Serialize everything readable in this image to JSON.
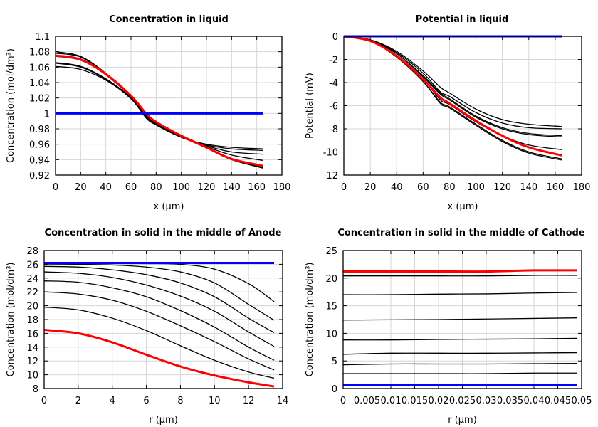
{
  "chart_data": [
    {
      "type": "line",
      "title": "Concentration in liquid",
      "xlabel": "x (µm)",
      "ylabel": "Concentration (mol/dm³)",
      "xlim": [
        0,
        180
      ],
      "ylim": [
        0.92,
        1.1
      ],
      "xticks": [
        "0",
        "20",
        "40",
        "60",
        "80",
        "100",
        "120",
        "140",
        "160",
        "180"
      ],
      "yticks": [
        "0.92",
        "0.94",
        "0.96",
        "0.98",
        "1",
        "1.02",
        "1.04",
        "1.06",
        "1.08",
        "1.1"
      ],
      "grid": true,
      "x": [
        0,
        20,
        40,
        60,
        72,
        80,
        100,
        120,
        140,
        165
      ],
      "series": [
        {
          "color": "#000000",
          "values": [
            1.08,
            1.074,
            1.052,
            1.022,
            0.998,
            0.988,
            0.97,
            0.955,
            0.94,
            0.929
          ]
        },
        {
          "color": "#000000",
          "values": [
            1.078,
            1.073,
            1.051,
            1.022,
            0.997,
            0.987,
            0.97,
            0.956,
            0.941,
            0.93
          ]
        },
        {
          "color": "#000000",
          "values": [
            1.074,
            1.069,
            1.05,
            1.021,
            0.996,
            0.986,
            0.97,
            0.957,
            0.946,
            0.939
          ]
        },
        {
          "color": "#000000",
          "values": [
            1.066,
            1.061,
            1.045,
            1.02,
            0.995,
            0.986,
            0.969,
            0.958,
            0.95,
            0.947
          ]
        },
        {
          "color": "#000000",
          "values": [
            1.065,
            1.06,
            1.044,
            1.02,
            0.995,
            0.985,
            0.969,
            0.959,
            0.954,
            0.952
          ]
        },
        {
          "color": "#000000",
          "values": [
            1.061,
            1.057,
            1.043,
            1.019,
            0.994,
            0.985,
            0.969,
            0.96,
            0.956,
            0.954
          ]
        },
        {
          "color": "#ff0000",
          "values": [
            1.075,
            1.07,
            1.051,
            1.023,
            1.0,
            0.989,
            0.971,
            0.956,
            0.941,
            0.932
          ]
        },
        {
          "color": "#0000ff",
          "values": [
            1.0,
            1.0,
            1.0,
            1.0,
            1.0,
            1.0,
            1.0,
            1.0,
            1.0,
            1.0
          ]
        }
      ]
    },
    {
      "type": "line",
      "title": "Potential in liquid",
      "xlabel": "x (µm)",
      "ylabel": "Potential (mV)",
      "xlim": [
        0,
        180
      ],
      "ylim": [
        -12,
        0
      ],
      "xticks": [
        "0",
        "20",
        "40",
        "60",
        "80",
        "100",
        "120",
        "140",
        "160",
        "180"
      ],
      "yticks": [
        "-12",
        "-10",
        "-8",
        "-6",
        "-4",
        "-2",
        "0"
      ],
      "grid": true,
      "x": [
        0,
        20,
        40,
        60,
        73,
        80,
        100,
        120,
        140,
        165
      ],
      "series": [
        {
          "color": "#000000",
          "values": [
            0,
            -0.3,
            -1.3,
            -3.0,
            -4.4,
            -4.9,
            -6.3,
            -7.2,
            -7.6,
            -7.8
          ]
        },
        {
          "color": "#000000",
          "values": [
            0,
            -0.3,
            -1.4,
            -3.2,
            -4.8,
            -5.2,
            -6.6,
            -7.5,
            -7.9,
            -8.0
          ]
        },
        {
          "color": "#000000",
          "values": [
            0,
            -0.35,
            -1.5,
            -3.4,
            -4.9,
            -5.4,
            -6.9,
            -7.9,
            -8.4,
            -8.6
          ]
        },
        {
          "color": "#000000",
          "values": [
            0,
            -0.35,
            -1.5,
            -3.5,
            -5.0,
            -5.5,
            -7.0,
            -8.0,
            -8.5,
            -8.7
          ]
        },
        {
          "color": "#000000",
          "values": [
            0,
            -0.4,
            -1.7,
            -3.7,
            -5.5,
            -5.9,
            -7.4,
            -8.6,
            -9.4,
            -9.8
          ]
        },
        {
          "color": "#000000",
          "values": [
            0,
            -0.4,
            -1.8,
            -3.9,
            -5.7,
            -6.1,
            -7.6,
            -9.0,
            -10.0,
            -10.6
          ]
        },
        {
          "color": "#000000",
          "values": [
            0,
            -0.4,
            -1.8,
            -3.9,
            -5.8,
            -6.2,
            -7.7,
            -9.1,
            -10.1,
            -10.7
          ]
        },
        {
          "color": "#ff0000",
          "values": [
            0,
            -0.4,
            -1.7,
            -3.7,
            -5.3,
            -5.8,
            -7.3,
            -8.6,
            -9.6,
            -10.3
          ]
        },
        {
          "color": "#0000ff",
          "values": [
            0,
            0,
            0,
            0,
            0,
            0,
            0,
            0,
            0,
            0
          ]
        }
      ]
    },
    {
      "type": "line",
      "title": "Concentration in solid in the middle of Anode",
      "xlabel": "r (µm)",
      "ylabel": "Concentration (mol/dm³)",
      "xlim": [
        0,
        14
      ],
      "ylim": [
        8,
        28
      ],
      "xticks": [
        "0",
        "2",
        "4",
        "6",
        "8",
        "10",
        "12",
        "14"
      ],
      "yticks": [
        "8",
        "10",
        "12",
        "14",
        "16",
        "18",
        "20",
        "22",
        "24",
        "26",
        "28"
      ],
      "grid": true,
      "x": [
        0,
        2,
        4,
        6,
        8,
        10,
        12,
        13.5
      ],
      "series": [
        {
          "color": "#000000",
          "values": [
            26.15,
            26.15,
            26.1,
            26.1,
            26.0,
            25.3,
            23.2,
            20.6
          ]
        },
        {
          "color": "#000000",
          "values": [
            26.05,
            26.0,
            25.9,
            25.6,
            24.9,
            23.3,
            20.2,
            17.9
          ]
        },
        {
          "color": "#000000",
          "values": [
            25.7,
            25.6,
            25.2,
            24.5,
            23.3,
            21.3,
            18.2,
            16.1
          ]
        },
        {
          "color": "#000000",
          "values": [
            24.9,
            24.7,
            24.1,
            23.0,
            21.4,
            19.2,
            16.2,
            14.1
          ]
        },
        {
          "color": "#000000",
          "values": [
            23.6,
            23.4,
            22.6,
            21.3,
            19.3,
            16.9,
            14.0,
            12.1
          ]
        },
        {
          "color": "#000000",
          "values": [
            22.0,
            21.7,
            20.8,
            19.2,
            17.1,
            14.8,
            12.3,
            10.7
          ]
        },
        {
          "color": "#000000",
          "values": [
            19.8,
            19.4,
            18.2,
            16.4,
            14.2,
            12.1,
            10.4,
            9.5
          ]
        },
        {
          "color": "#ff0000",
          "values": [
            16.5,
            16.0,
            14.7,
            12.9,
            11.2,
            9.9,
            8.9,
            8.3
          ]
        },
        {
          "color": "#0000ff",
          "values": [
            26.2,
            26.2,
            26.2,
            26.2,
            26.2,
            26.2,
            26.2,
            26.2
          ]
        }
      ]
    },
    {
      "type": "line",
      "title": "Concentration in solid in the middle of Cathode",
      "xlabel": "r (µm)",
      "ylabel": "Concentration (mol/dm³)",
      "xlim": [
        0,
        0.05
      ],
      "ylim": [
        0,
        25
      ],
      "xticks": [
        "0",
        "0.005",
        "0.01",
        "0.015",
        "0.02",
        "0.025",
        "0.03",
        "0.035",
        "0.04",
        "0.045",
        "0.05"
      ],
      "yticks": [
        "0",
        "5",
        "10",
        "15",
        "20",
        "25"
      ],
      "grid": true,
      "x": [
        0,
        0.01,
        0.02,
        0.03,
        0.04,
        0.049
      ],
      "series": [
        {
          "color": "#000000",
          "values": [
            2.7,
            2.7,
            2.7,
            2.7,
            2.8,
            2.8
          ]
        },
        {
          "color": "#000000",
          "values": [
            4.3,
            4.45,
            4.45,
            4.45,
            4.5,
            4.55
          ]
        },
        {
          "color": "#000000",
          "values": [
            6.2,
            6.4,
            6.4,
            6.4,
            6.45,
            6.5
          ]
        },
        {
          "color": "#000000",
          "values": [
            8.8,
            8.8,
            8.9,
            8.95,
            9.0,
            9.1
          ]
        },
        {
          "color": "#000000",
          "values": [
            12.4,
            12.45,
            12.5,
            12.6,
            12.7,
            12.8
          ]
        },
        {
          "color": "#000000",
          "values": [
            17.0,
            17.0,
            17.1,
            17.15,
            17.3,
            17.4
          ]
        },
        {
          "color": "#000000",
          "values": [
            20.4,
            20.4,
            20.4,
            20.4,
            20.5,
            20.5
          ]
        },
        {
          "color": "#ff0000",
          "values": [
            21.2,
            21.2,
            21.2,
            21.2,
            21.4,
            21.4
          ]
        },
        {
          "color": "#0000ff",
          "values": [
            0.7,
            0.7,
            0.7,
            0.7,
            0.7,
            0.7
          ]
        }
      ]
    }
  ]
}
